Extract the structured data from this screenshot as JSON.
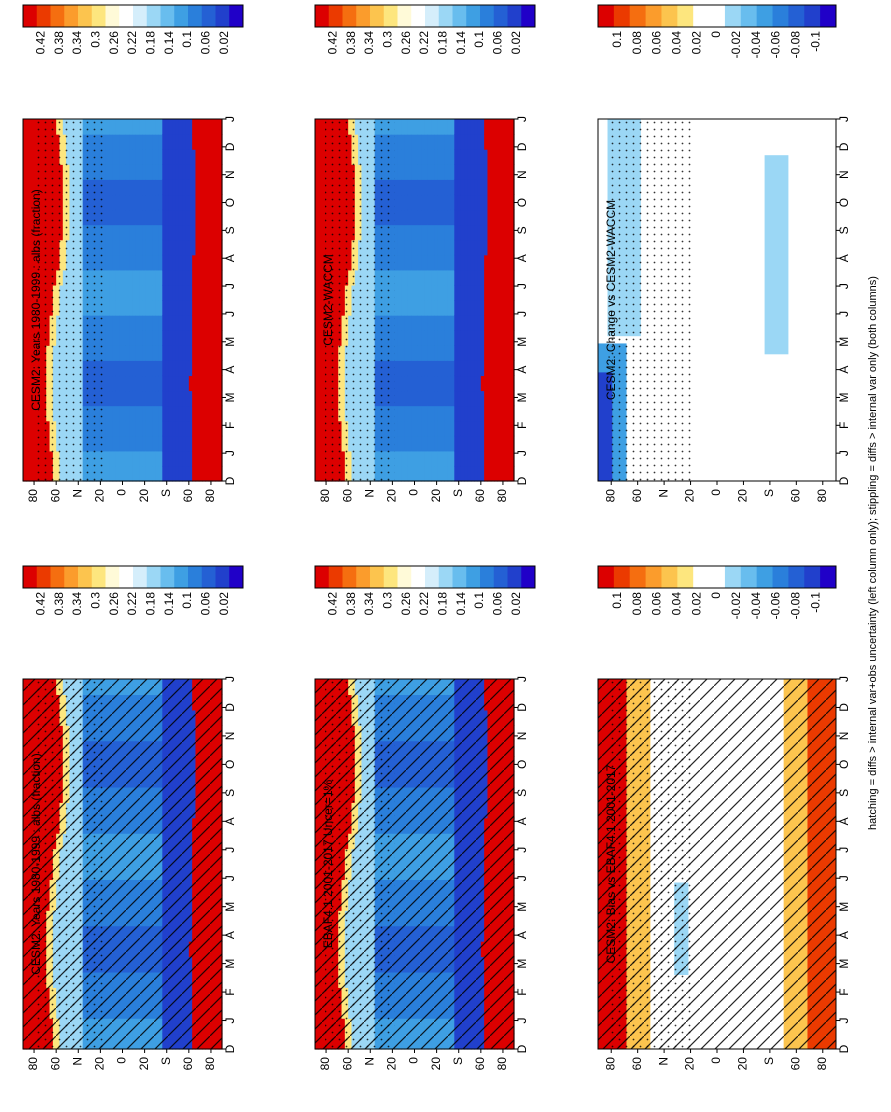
{
  "footnote": "hatching = diffs > internal var+obs uncertainty (left column only); stippling = diffs > internal var only (both columns)",
  "months": [
    "D",
    "J",
    "F",
    "M",
    "A",
    "M",
    "J",
    "J",
    "A",
    "S",
    "O",
    "N",
    "D",
    "J"
  ],
  "lat_ticks": [
    "80",
    "60",
    "N",
    "20",
    "0",
    "20",
    "S",
    "60",
    "80"
  ],
  "lat_values": [
    80,
    60,
    40,
    20,
    0,
    -20,
    -40,
    -60,
    -80
  ],
  "colorbars": {
    "abs": {
      "labels": [
        "0.42",
        "0.38",
        "0.34",
        "0.3",
        "0.26",
        "0.22",
        "0.18",
        "0.14",
        "0.1",
        "0.06",
        "0.02"
      ],
      "colors": [
        "#dc0000",
        "#eb3a00",
        "#f56e10",
        "#fb9c2c",
        "#fcc44e",
        "#fde67e",
        "#fffad8",
        "#ffffff",
        "#d5eefb",
        "#9bd7f5",
        "#68bdee",
        "#3e9fe3",
        "#2a7fdb",
        "#2460d4",
        "#2140cc",
        "#2000c8"
      ]
    },
    "diff": {
      "labels": [
        "0.1",
        "0.08",
        "0.06",
        "0.04",
        "0.02",
        "0",
        "-0.02",
        "-0.04",
        "-0.06",
        "-0.08",
        "-0.1"
      ],
      "colors": [
        "#dc0000",
        "#eb3a00",
        "#f56e10",
        "#fb9c2c",
        "#fcc44e",
        "#fde67e",
        "#ffffff",
        "#ffffff",
        "#9bd7f5",
        "#68bdee",
        "#3e9fe3",
        "#2a7fdb",
        "#2460d4",
        "#2140cc",
        "#2000c8"
      ]
    }
  },
  "chart_data": [
    {
      "type": "heatmap",
      "title": "CESM2: Years 1980-1999 : albs (fraction)",
      "colorbar": "abs",
      "x": "month (D..J)",
      "y": "latitude (80N..80S)",
      "zones": [
        {
          "lat": "polar north",
          "value": 0.44
        },
        {
          "lat": "60N",
          "value": 0.3
        },
        {
          "lat": "40N",
          "value": 0.16
        },
        {
          "lat": "tropics",
          "value": 0.1
        },
        {
          "lat": "40S",
          "value": 0.06
        },
        {
          "lat": "polar south",
          "value": 0.44
        }
      ],
      "hatching": true,
      "stippling": true
    },
    {
      "type": "heatmap",
      "title": "CESM2: Years 1980-1999 : albs (fraction)",
      "colorbar": "abs",
      "x": "month (D..J)",
      "y": "latitude (80N..80S)",
      "zones": [
        {
          "lat": "polar north",
          "value": 0.44
        },
        {
          "lat": "60N",
          "value": 0.3
        },
        {
          "lat": "40N",
          "value": 0.16
        },
        {
          "lat": "tropics",
          "value": 0.1
        },
        {
          "lat": "40S",
          "value": 0.06
        },
        {
          "lat": "polar south",
          "value": 0.44
        }
      ],
      "stippling": true
    },
    {
      "type": "heatmap",
      "title": "EBAF4.1 2001-2017 Uncer=1%",
      "colorbar": "abs",
      "x": "month (D..J)",
      "y": "latitude (80N..80S)",
      "zones": [
        {
          "lat": "polar north",
          "value": 0.44
        },
        {
          "lat": "60N",
          "value": 0.3
        },
        {
          "lat": "40N",
          "value": 0.16
        },
        {
          "lat": "tropics",
          "value": 0.1
        },
        {
          "lat": "40S",
          "value": 0.06
        },
        {
          "lat": "polar south",
          "value": 0.44
        }
      ],
      "hatching": true,
      "stippling": true
    },
    {
      "type": "heatmap",
      "title": "CESM2-WACCM",
      "colorbar": "abs",
      "x": "month (D..J)",
      "y": "latitude (80N..80S)",
      "zones": [
        {
          "lat": "polar north",
          "value": 0.44
        },
        {
          "lat": "60N",
          "value": 0.3
        },
        {
          "lat": "40N",
          "value": 0.16
        },
        {
          "lat": "tropics",
          "value": 0.1
        },
        {
          "lat": "40S",
          "value": 0.06
        },
        {
          "lat": "polar south",
          "value": 0.44
        }
      ],
      "stippling": true
    },
    {
      "type": "heatmap",
      "title": "CESM2: Bias vs EBAF4.1 2001-2017",
      "colorbar": "diff",
      "x": "month (D..J)",
      "y": "latitude (80N..80S)",
      "zones": [
        {
          "lat": "polar north",
          "value": 0.1
        },
        {
          "lat": "60N",
          "value": 0.04
        },
        {
          "lat": "tropics",
          "value": 0.0
        },
        {
          "lat": "60S",
          "value": 0.06
        },
        {
          "lat": "polar south",
          "value": 0.1
        }
      ],
      "hatching": true,
      "stippling": true
    },
    {
      "type": "heatmap",
      "title": "CESM2: Change vs CESM2-WACCM",
      "colorbar": "diff",
      "x": "month (D..J)",
      "y": "latitude (80N..80S)",
      "zones": [
        {
          "lat": "80N",
          "value": -0.06
        },
        {
          "lat": "60N",
          "value": -0.02
        },
        {
          "lat": "tropics",
          "value": 0.0
        },
        {
          "lat": "60S",
          "value": -0.02
        }
      ],
      "stippling": true
    }
  ]
}
